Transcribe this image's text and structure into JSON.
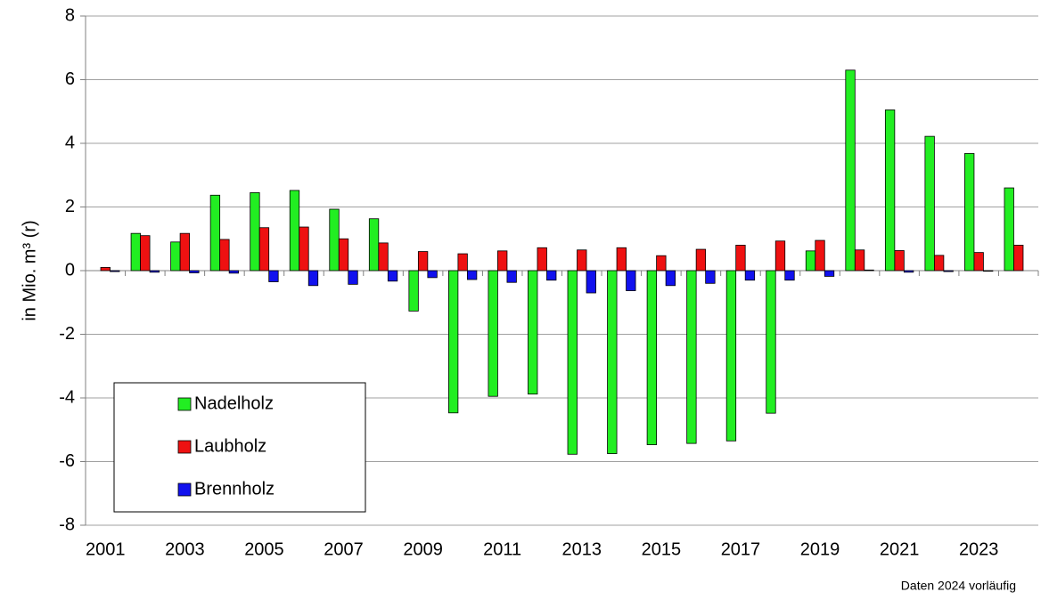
{
  "chart_data": {
    "type": "bar",
    "y_label": "in Mio. m³ (r)",
    "annotation": "Daten 2024 vorläufig",
    "categories": [
      "2001",
      null,
      "2003",
      null,
      "2005",
      null,
      "2007",
      null,
      "2009",
      null,
      "2011",
      null,
      "2013",
      null,
      "2015",
      null,
      "2017",
      null,
      "2019",
      null,
      "2021",
      null,
      "2023",
      null
    ],
    "series": [
      {
        "name": "Nadelholz",
        "color": "#22ee22",
        "values": [
          0,
          1.17,
          0.9,
          2.37,
          2.45,
          2.52,
          1.93,
          1.63,
          -1.27,
          -4.47,
          -3.95,
          -3.88,
          -5.77,
          -5.75,
          -5.47,
          -5.43,
          -5.35,
          -4.48,
          0.62,
          6.3,
          5.05,
          4.22,
          3.68,
          2.6
        ]
      },
      {
        "name": "Laubholz",
        "color": "#ee1111",
        "values": [
          0.1,
          1.1,
          1.17,
          0.98,
          1.35,
          1.37,
          1.0,
          0.87,
          0.6,
          0.53,
          0.62,
          0.72,
          0.65,
          0.72,
          0.47,
          0.67,
          0.8,
          0.93,
          0.95,
          0.65,
          0.63,
          0.48,
          0.57,
          0.8
        ]
      },
      {
        "name": "Brennholz",
        "color": "#1111ee",
        "values": [
          -0.03,
          -0.05,
          -0.07,
          -0.08,
          -0.35,
          -0.47,
          -0.43,
          -0.33,
          -0.22,
          -0.28,
          -0.37,
          -0.3,
          -0.7,
          -0.63,
          -0.47,
          -0.4,
          -0.3,
          -0.3,
          -0.18,
          0.02,
          -0.05,
          -0.03,
          -0.02,
          0
        ]
      }
    ],
    "ylim": [
      -8,
      8
    ],
    "yticks": [
      -8,
      -6,
      -4,
      -2,
      0,
      2,
      4,
      6,
      8
    ],
    "grid": true,
    "legend": "lower left"
  }
}
